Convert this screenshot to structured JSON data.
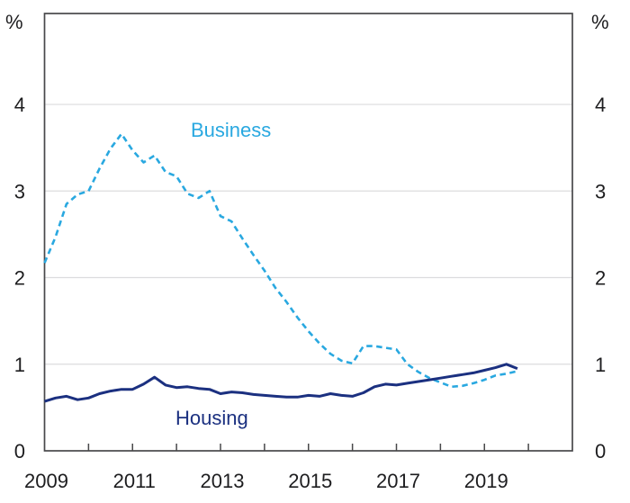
{
  "chart_data": {
    "type": "line",
    "title": "",
    "unit_left": "%",
    "unit_right": "%",
    "xlim": [
      2009,
      2021
    ],
    "ylim": [
      0,
      5.05
    ],
    "grid": "horizontal-only",
    "legend_position": "inline-labels",
    "y_gridlines": [
      1,
      2,
      3,
      4
    ],
    "y_tick_labels": [
      "0",
      "1",
      "2",
      "3",
      "4"
    ],
    "y_tick_values": [
      0,
      1,
      2,
      3,
      4
    ],
    "x_ticks": [
      2010,
      2011,
      2012,
      2013,
      2014,
      2015,
      2016,
      2017,
      2018,
      2019,
      2020
    ],
    "x_label_years": [
      "2009",
      "2011",
      "2013",
      "2015",
      "2017",
      "2019"
    ],
    "x_label_values": [
      2009,
      2011,
      2013,
      2015,
      2017,
      2019
    ],
    "colors": {
      "grid": "#dcdcde",
      "axis": "#48484a",
      "text": "#1d1d1f"
    },
    "frequency": "quarterly",
    "series": [
      {
        "name": "Business",
        "color": "#29a8e0",
        "style": "dashed",
        "dash": "6.5 4.5",
        "width": 2.6,
        "start_year": 2009.0,
        "step": 0.25,
        "values": [
          2.17,
          2.47,
          2.85,
          2.96,
          3.0,
          3.26,
          3.49,
          3.66,
          3.47,
          3.33,
          3.41,
          3.22,
          3.17,
          2.97,
          2.92,
          3.0,
          2.71,
          2.65,
          2.45,
          2.26,
          2.08,
          1.88,
          1.72,
          1.54,
          1.38,
          1.24,
          1.12,
          1.04,
          1.01,
          1.21,
          1.21,
          1.19,
          1.17,
          1.0,
          0.91,
          0.84,
          0.79,
          0.74,
          0.75,
          0.78,
          0.82,
          0.87,
          0.89,
          0.92
        ]
      },
      {
        "name": "Housing",
        "color": "#1b3080",
        "style": "solid",
        "dash": "",
        "width": 3,
        "start_year": 2009.0,
        "step": 0.25,
        "values": [
          0.57,
          0.61,
          0.63,
          0.59,
          0.61,
          0.66,
          0.69,
          0.71,
          0.71,
          0.77,
          0.85,
          0.76,
          0.73,
          0.74,
          0.72,
          0.71,
          0.66,
          0.68,
          0.67,
          0.65,
          0.64,
          0.63,
          0.62,
          0.62,
          0.64,
          0.63,
          0.66,
          0.64,
          0.63,
          0.67,
          0.74,
          0.77,
          0.76,
          0.78,
          0.8,
          0.82,
          0.84,
          0.86,
          0.88,
          0.9,
          0.93,
          0.96,
          1.0,
          0.95
        ]
      }
    ]
  }
}
